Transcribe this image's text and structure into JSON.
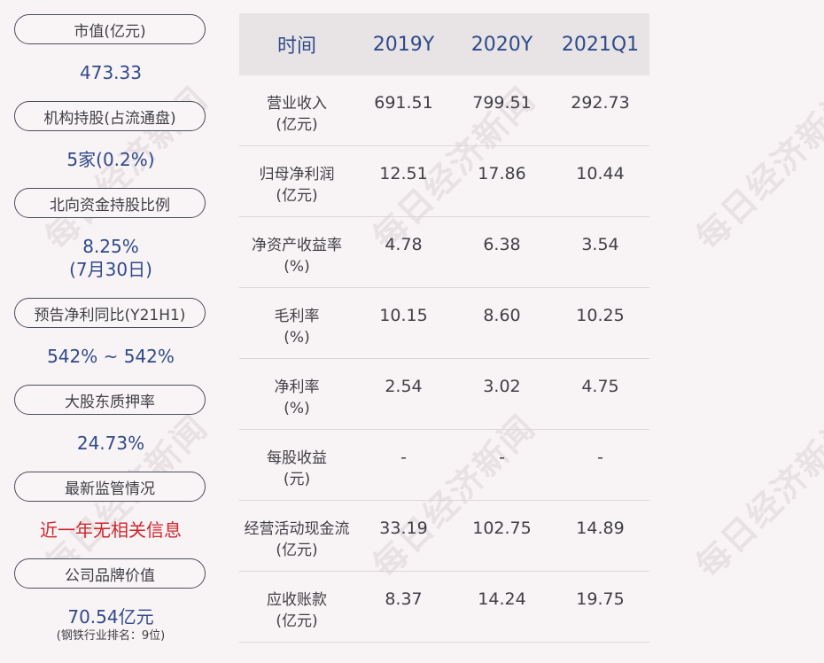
{
  "watermark": "每日经济新闻",
  "left": {
    "market_cap": {
      "label": "市值(亿元)",
      "value": "473.33"
    },
    "institutional": {
      "label": "机构持股(占流通盘)",
      "value": "5家(0.2%)"
    },
    "northbound": {
      "label": "北向资金持股比例",
      "value": "8.25%",
      "value2": "(7月30日)"
    },
    "forecast": {
      "label": "预告净利同比(Y21H1)",
      "value": "542% ~ 542%"
    },
    "pledge": {
      "label": "大股东质押率",
      "value": "24.73%"
    },
    "regulation": {
      "label": "最新监管情况",
      "value": "近一年无相关信息"
    },
    "brand": {
      "label": "公司品牌价值",
      "value": "70.54亿元",
      "note": "(钢铁行业排名：9位)"
    }
  },
  "table": {
    "headers": [
      "时间",
      "2019Y",
      "2020Y",
      "2021Q1"
    ],
    "rows": [
      {
        "name": "营业收入",
        "unit": "(亿元)",
        "values": [
          "691.51",
          "799.51",
          "292.73"
        ]
      },
      {
        "name": "归母净利润",
        "unit": "(亿元)",
        "values": [
          "12.51",
          "17.86",
          "10.44"
        ]
      },
      {
        "name": "净资产收益率",
        "unit": "(%)",
        "values": [
          "4.78",
          "6.38",
          "3.54"
        ]
      },
      {
        "name": "毛利率",
        "unit": "(%)",
        "values": [
          "10.15",
          "8.60",
          "10.25"
        ]
      },
      {
        "name": "净利率",
        "unit": "(%)",
        "values": [
          "2.54",
          "3.02",
          "4.75"
        ]
      },
      {
        "name": "每股收益",
        "unit": "(元)",
        "values": [
          "-",
          "-",
          "-"
        ]
      },
      {
        "name": "经营活动现金流",
        "unit": "(亿元)",
        "values": [
          "33.19",
          "102.75",
          "14.89"
        ]
      },
      {
        "name": "应收账款",
        "unit": "(亿元)",
        "values": [
          "8.37",
          "14.24",
          "19.75"
        ]
      }
    ]
  }
}
